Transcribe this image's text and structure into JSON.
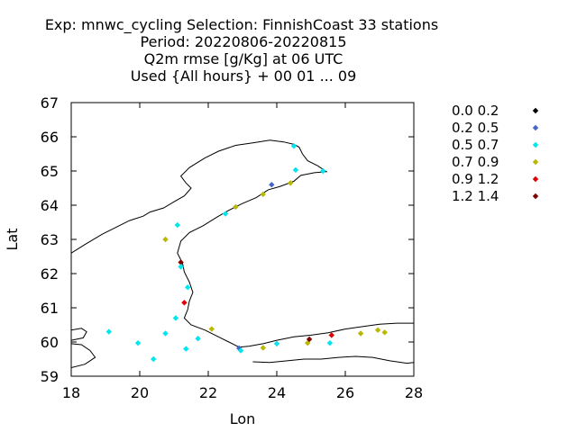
{
  "chart_data": {
    "type": "scatter",
    "title_lines": [
      "Exp: mnwc_cycling   Selection: FinnishCoast      33 stations",
      "Period: 20220806-20220815",
      "Q2m rmse [g/Kg] at  06 UTC",
      "Used {All hours} + 00 01 ... 09"
    ],
    "xlabel": "Lon",
    "ylabel": "Lat",
    "xlim": [
      18,
      28
    ],
    "ylim": [
      59,
      67
    ],
    "xticks": [
      18,
      20,
      22,
      24,
      26,
      28
    ],
    "yticks": [
      59,
      60,
      61,
      62,
      63,
      64,
      65,
      66,
      67
    ],
    "legend_position": "right",
    "legend": [
      {
        "label": "0.0 0.2",
        "color": "#000000"
      },
      {
        "label": "0.2 0.5",
        "color": "#4466cc"
      },
      {
        "label": "0.5 0.7",
        "color": "#00e5ee"
      },
      {
        "label": "0.7 0.9",
        "color": "#b8b800"
      },
      {
        "label": "0.9 1.2",
        "color": "#e00000"
      },
      {
        "label": "1.2 1.4",
        "color": "#800000"
      }
    ],
    "points": [
      {
        "lon": 24.5,
        "lat": 65.73,
        "bin": 2
      },
      {
        "lon": 24.55,
        "lat": 65.03,
        "bin": 2
      },
      {
        "lon": 25.35,
        "lat": 65.0,
        "bin": 2
      },
      {
        "lon": 23.85,
        "lat": 64.6,
        "bin": 1
      },
      {
        "lon": 24.4,
        "lat": 64.65,
        "bin": 3
      },
      {
        "lon": 23.6,
        "lat": 64.32,
        "bin": 3
      },
      {
        "lon": 22.8,
        "lat": 63.95,
        "bin": 3
      },
      {
        "lon": 22.5,
        "lat": 63.75,
        "bin": 2
      },
      {
        "lon": 21.1,
        "lat": 63.42,
        "bin": 2
      },
      {
        "lon": 20.75,
        "lat": 63.0,
        "bin": 3
      },
      {
        "lon": 21.2,
        "lat": 62.33,
        "bin": 5
      },
      {
        "lon": 21.2,
        "lat": 62.2,
        "bin": 2
      },
      {
        "lon": 21.4,
        "lat": 61.6,
        "bin": 2
      },
      {
        "lon": 21.3,
        "lat": 61.15,
        "bin": 4
      },
      {
        "lon": 21.05,
        "lat": 60.7,
        "bin": 2
      },
      {
        "lon": 19.1,
        "lat": 60.3,
        "bin": 2
      },
      {
        "lon": 19.95,
        "lat": 59.97,
        "bin": 2
      },
      {
        "lon": 20.4,
        "lat": 59.5,
        "bin": 2
      },
      {
        "lon": 20.75,
        "lat": 60.25,
        "bin": 2
      },
      {
        "lon": 21.35,
        "lat": 59.8,
        "bin": 2
      },
      {
        "lon": 21.7,
        "lat": 60.1,
        "bin": 2
      },
      {
        "lon": 22.1,
        "lat": 60.38,
        "bin": 3
      },
      {
        "lon": 22.9,
        "lat": 59.82,
        "bin": 1
      },
      {
        "lon": 22.95,
        "lat": 59.75,
        "bin": 2
      },
      {
        "lon": 23.6,
        "lat": 59.83,
        "bin": 3
      },
      {
        "lon": 24.0,
        "lat": 59.95,
        "bin": 2
      },
      {
        "lon": 24.9,
        "lat": 59.97,
        "bin": 3
      },
      {
        "lon": 24.95,
        "lat": 60.08,
        "bin": 5
      },
      {
        "lon": 25.55,
        "lat": 59.97,
        "bin": 2
      },
      {
        "lon": 25.6,
        "lat": 60.2,
        "bin": 4
      },
      {
        "lon": 26.45,
        "lat": 60.25,
        "bin": 3
      },
      {
        "lon": 26.95,
        "lat": 60.35,
        "bin": 3
      },
      {
        "lon": 27.15,
        "lat": 60.28,
        "bin": 3
      }
    ],
    "coastlines": [
      [
        [
          18.0,
          62.6
        ],
        [
          18.4,
          62.85
        ],
        [
          18.9,
          63.15
        ],
        [
          19.3,
          63.35
        ],
        [
          19.7,
          63.55
        ],
        [
          20.1,
          63.68
        ],
        [
          20.3,
          63.8
        ],
        [
          20.7,
          63.92
        ],
        [
          21.0,
          64.1
        ],
        [
          21.3,
          64.27
        ],
        [
          21.5,
          64.5
        ],
        [
          21.35,
          64.65
        ],
        [
          21.2,
          64.85
        ],
        [
          21.45,
          65.1
        ],
        [
          21.9,
          65.38
        ],
        [
          22.3,
          65.58
        ],
        [
          22.8,
          65.75
        ],
        [
          23.3,
          65.82
        ],
        [
          23.8,
          65.9
        ],
        [
          24.2,
          65.85
        ],
        [
          24.5,
          65.78
        ],
        [
          24.65,
          65.7
        ],
        [
          24.75,
          65.5
        ],
        [
          24.9,
          65.3
        ],
        [
          25.2,
          65.15
        ],
        [
          25.45,
          64.98
        ],
        [
          25.1,
          64.95
        ],
        [
          24.7,
          64.87
        ],
        [
          24.5,
          64.7
        ],
        [
          24.1,
          64.55
        ],
        [
          23.75,
          64.45
        ],
        [
          23.4,
          64.22
        ],
        [
          23.0,
          64.05
        ],
        [
          22.6,
          63.85
        ],
        [
          22.25,
          63.65
        ],
        [
          21.85,
          63.4
        ],
        [
          21.45,
          63.2
        ],
        [
          21.2,
          62.95
        ],
        [
          21.1,
          62.6
        ],
        [
          21.25,
          62.3
        ],
        [
          21.3,
          62.05
        ],
        [
          21.45,
          61.75
        ],
        [
          21.55,
          61.45
        ],
        [
          21.45,
          61.2
        ],
        [
          21.4,
          60.95
        ],
        [
          21.3,
          60.7
        ],
        [
          21.5,
          60.5
        ],
        [
          21.9,
          60.35
        ],
        [
          22.3,
          60.15
        ],
        [
          22.6,
          60.0
        ],
        [
          22.9,
          59.85
        ],
        [
          23.2,
          59.88
        ],
        [
          23.6,
          59.95
        ],
        [
          24.0,
          60.05
        ],
        [
          24.5,
          60.15
        ],
        [
          25.0,
          60.2
        ],
        [
          25.5,
          60.27
        ],
        [
          26.0,
          60.38
        ],
        [
          26.5,
          60.45
        ],
        [
          27.0,
          60.52
        ],
        [
          27.5,
          60.55
        ],
        [
          28.0,
          60.55
        ]
      ],
      [
        [
          18.0,
          59.95
        ],
        [
          18.3,
          59.92
        ],
        [
          18.55,
          59.75
        ],
        [
          18.7,
          59.55
        ],
        [
          18.4,
          59.35
        ],
        [
          18.0,
          59.25
        ]
      ],
      [
        [
          18.0,
          60.35
        ],
        [
          18.3,
          60.4
        ],
        [
          18.45,
          60.3
        ],
        [
          18.35,
          60.12
        ],
        [
          18.0,
          60.05
        ]
      ],
      [
        [
          23.3,
          59.42
        ],
        [
          23.8,
          59.4
        ],
        [
          24.3,
          59.45
        ],
        [
          24.8,
          59.5
        ],
        [
          25.3,
          59.5
        ],
        [
          25.8,
          59.55
        ],
        [
          26.3,
          59.58
        ],
        [
          26.8,
          59.55
        ],
        [
          27.3,
          59.45
        ],
        [
          27.8,
          59.38
        ],
        [
          28.0,
          59.4
        ]
      ]
    ]
  }
}
